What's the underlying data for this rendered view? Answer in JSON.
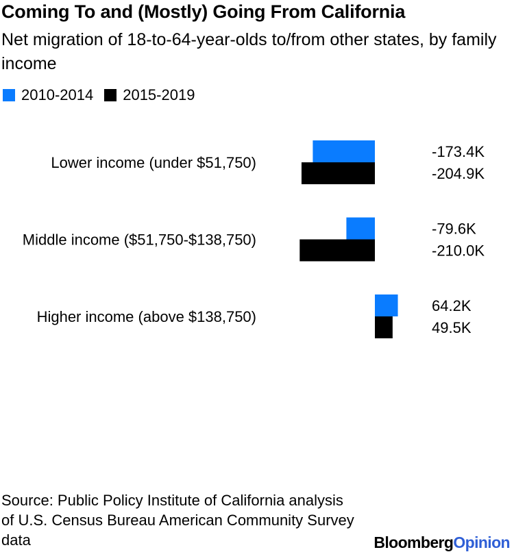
{
  "chart_data": {
    "type": "bar",
    "orientation": "horizontal",
    "title": "Coming To and (Mostly) Going From California",
    "subtitle": "Net migration of 18-to-64-year-olds to/from other states, by family income",
    "categories": [
      "Lower income (under $51,750)",
      "Middle income ($51,750-$138,750)",
      "Higher income (above $138,750)"
    ],
    "series": [
      {
        "name": "2010-2014",
        "color": "#0a7cff",
        "values": [
          -173.4,
          -79.6,
          64.2
        ],
        "labels": [
          "-173.4K",
          "-79.6K",
          "64.2K"
        ]
      },
      {
        "name": "2015-2019",
        "color": "#000000",
        "values": [
          -204.9,
          -210.0,
          49.5
        ],
        "labels": [
          "-204.9K",
          "-210.0K",
          "49.5K"
        ]
      }
    ],
    "unit": "K",
    "legend_position": "top-left"
  },
  "footer": {
    "source": "Source: Public Policy Institute of California analysis of U.S. Census Bureau American Community Survey data",
    "brand_part1": "Bloomberg",
    "brand_part2": "Opinion"
  }
}
